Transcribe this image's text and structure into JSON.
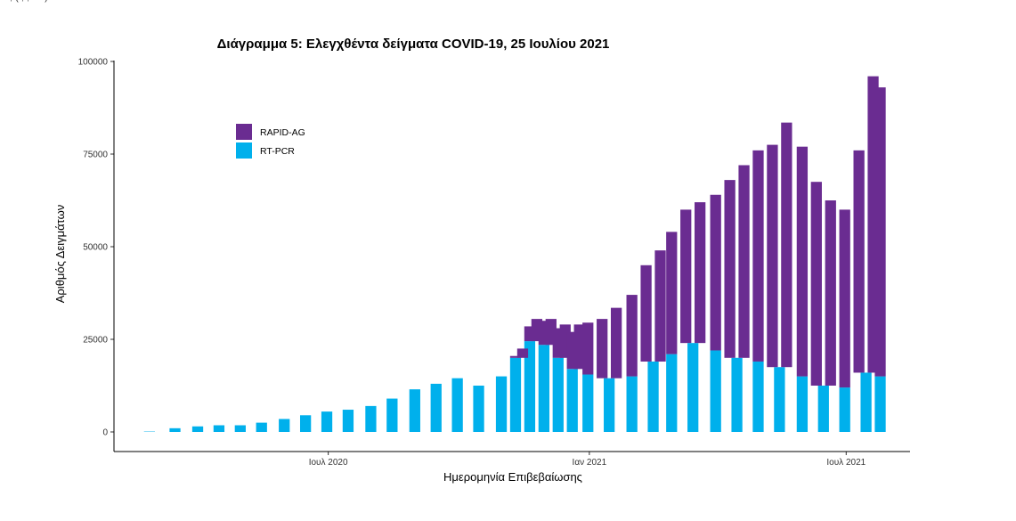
{
  "page": {
    "top_text": "…, ( , , … ) …"
  },
  "chart_data": {
    "type": "bar",
    "stacked": true,
    "title": "Διάγραμμα 5: Ελεγχθέντα δείγματα COVID-19, 25 Ιουλίου 2021",
    "xlabel": "Ημερομηνία Επιβεβαίωσης",
    "ylabel": "Αριθμός Δειγμάτων",
    "ylim": [
      0,
      100000
    ],
    "y_ticks": [
      0,
      25000,
      50000,
      75000,
      100000
    ],
    "x_ticks": [
      {
        "date": "2020-07-01",
        "label": "Ιουλ 2020"
      },
      {
        "date": "2021-01-01",
        "label": "Ιαν 2021"
      },
      {
        "date": "2021-07-01",
        "label": "Ιουλ 2021"
      }
    ],
    "x_range": [
      "2020-02-01",
      "2021-08-15"
    ],
    "legend": {
      "position": "top-left"
    },
    "series": [
      {
        "name": "RAPID-AG",
        "color": "#6A2C91",
        "values": [
          {
            "date": "2020-11-10",
            "value": 500
          },
          {
            "date": "2020-11-15",
            "value": 2500
          },
          {
            "date": "2020-11-20",
            "value": 4000
          },
          {
            "date": "2020-11-25",
            "value": 6000
          },
          {
            "date": "2020-11-30",
            "value": 6500
          },
          {
            "date": "2020-12-05",
            "value": 7000
          },
          {
            "date": "2020-12-10",
            "value": 8000
          },
          {
            "date": "2020-12-15",
            "value": 9000
          },
          {
            "date": "2020-12-20",
            "value": 10000
          },
          {
            "date": "2020-12-25",
            "value": 12000
          },
          {
            "date": "2020-12-31",
            "value": 14000
          },
          {
            "date": "2021-01-10",
            "value": 16000
          },
          {
            "date": "2021-01-20",
            "value": 19000
          },
          {
            "date": "2021-01-31",
            "value": 22000
          },
          {
            "date": "2021-02-10",
            "value": 26000
          },
          {
            "date": "2021-02-20",
            "value": 30000
          },
          {
            "date": "2021-02-28",
            "value": 33000
          },
          {
            "date": "2021-03-10",
            "value": 36000
          },
          {
            "date": "2021-03-20",
            "value": 38000
          },
          {
            "date": "2021-03-31",
            "value": 42000
          },
          {
            "date": "2021-04-10",
            "value": 48000
          },
          {
            "date": "2021-04-20",
            "value": 52000
          },
          {
            "date": "2021-04-30",
            "value": 57000
          },
          {
            "date": "2021-05-10",
            "value": 60000
          },
          {
            "date": "2021-05-20",
            "value": 66000
          },
          {
            "date": "2021-05-31",
            "value": 62000
          },
          {
            "date": "2021-06-10",
            "value": 55000
          },
          {
            "date": "2021-06-20",
            "value": 50000
          },
          {
            "date": "2021-06-30",
            "value": 48000
          },
          {
            "date": "2021-07-10",
            "value": 60000
          },
          {
            "date": "2021-07-20",
            "value": 80000
          },
          {
            "date": "2021-07-25",
            "value": 78000
          }
        ]
      },
      {
        "name": "RT-PCR",
        "color": "#00B0EC",
        "values": [
          {
            "date": "2020-02-26",
            "value": 100
          },
          {
            "date": "2020-03-15",
            "value": 1000
          },
          {
            "date": "2020-03-31",
            "value": 1500
          },
          {
            "date": "2020-04-15",
            "value": 1800
          },
          {
            "date": "2020-04-30",
            "value": 1800
          },
          {
            "date": "2020-05-15",
            "value": 2500
          },
          {
            "date": "2020-05-31",
            "value": 3500
          },
          {
            "date": "2020-06-15",
            "value": 4500
          },
          {
            "date": "2020-06-30",
            "value": 5500
          },
          {
            "date": "2020-07-15",
            "value": 6000
          },
          {
            "date": "2020-07-31",
            "value": 7000
          },
          {
            "date": "2020-08-15",
            "value": 9000
          },
          {
            "date": "2020-08-31",
            "value": 11500
          },
          {
            "date": "2020-09-15",
            "value": 13000
          },
          {
            "date": "2020-09-30",
            "value": 14500
          },
          {
            "date": "2020-10-15",
            "value": 12500
          },
          {
            "date": "2020-10-31",
            "value": 15000
          },
          {
            "date": "2020-11-10",
            "value": 20000
          },
          {
            "date": "2020-11-20",
            "value": 24500
          },
          {
            "date": "2020-11-30",
            "value": 23500
          },
          {
            "date": "2020-12-10",
            "value": 20000
          },
          {
            "date": "2020-12-20",
            "value": 17000
          },
          {
            "date": "2020-12-31",
            "value": 15500
          },
          {
            "date": "2021-01-15",
            "value": 14500
          },
          {
            "date": "2021-01-31",
            "value": 15000
          },
          {
            "date": "2021-02-15",
            "value": 19000
          },
          {
            "date": "2021-02-28",
            "value": 21000
          },
          {
            "date": "2021-03-15",
            "value": 24000
          },
          {
            "date": "2021-03-31",
            "value": 22000
          },
          {
            "date": "2021-04-15",
            "value": 20000
          },
          {
            "date": "2021-04-30",
            "value": 19000
          },
          {
            "date": "2021-05-15",
            "value": 17500
          },
          {
            "date": "2021-05-31",
            "value": 15000
          },
          {
            "date": "2021-06-15",
            "value": 12500
          },
          {
            "date": "2021-06-30",
            "value": 12000
          },
          {
            "date": "2021-07-15",
            "value": 16000
          },
          {
            "date": "2021-07-25",
            "value": 15000
          }
        ]
      }
    ]
  }
}
